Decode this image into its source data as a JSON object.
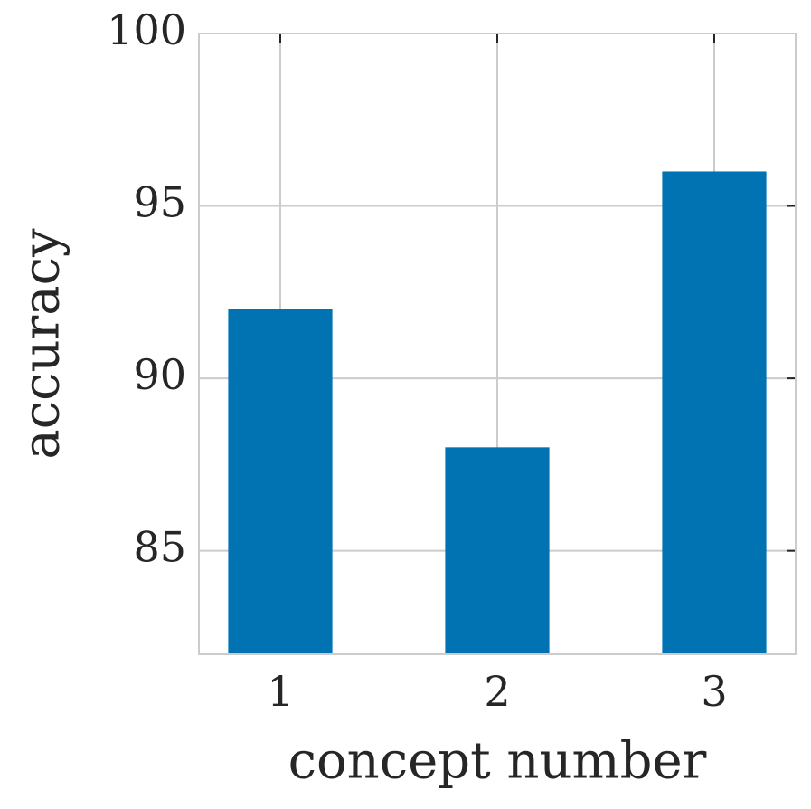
{
  "chart_data": {
    "type": "bar",
    "x": [
      1,
      2,
      3
    ],
    "values": [
      92,
      88,
      96
    ],
    "color": "#0173b2",
    "xlabel": "concept number",
    "ylabel": "accuracy",
    "xlim": [
      0.625,
      3.375
    ],
    "xticks": [
      1,
      2,
      3
    ],
    "ylim": [
      82,
      100
    ],
    "yticks": [
      85,
      90,
      95,
      100
    ],
    "grid": true
  }
}
